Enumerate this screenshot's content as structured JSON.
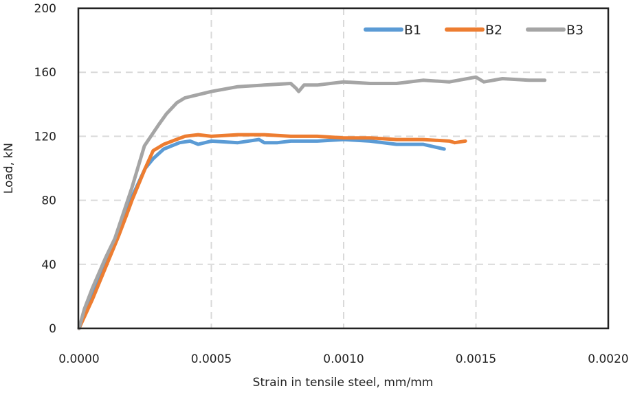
{
  "chart_data": {
    "type": "line",
    "title": "",
    "xlabel": "Strain in tensile steel, mm/mm",
    "ylabel": "Load, kN",
    "xlim": [
      0,
      0.002
    ],
    "ylim": [
      0,
      200
    ],
    "xticks": [
      "0.0000",
      "0.0005",
      "0.0010",
      "0.0015",
      "0.0020"
    ],
    "xtick_values": [
      0,
      0.0005,
      0.001,
      0.0015,
      0.002
    ],
    "yticks": [
      "0",
      "40",
      "80",
      "120",
      "160",
      "200"
    ],
    "ytick_values": [
      0,
      40,
      80,
      120,
      160,
      200
    ],
    "grid": true,
    "legend_position": "top-right",
    "series": [
      {
        "name": "B1",
        "color": "#5b9bd5",
        "points": [
          [
            0,
            0
          ],
          [
            5e-05,
            20
          ],
          [
            0.0001,
            40
          ],
          [
            0.00015,
            60
          ],
          [
            0.0002,
            82
          ],
          [
            0.00025,
            100
          ],
          [
            0.00028,
            106
          ],
          [
            0.00032,
            112
          ],
          [
            0.00038,
            116
          ],
          [
            0.00042,
            117
          ],
          [
            0.00045,
            115
          ],
          [
            0.0005,
            117
          ],
          [
            0.0006,
            116
          ],
          [
            0.00068,
            118
          ],
          [
            0.0007,
            116
          ],
          [
            0.00075,
            116
          ],
          [
            0.0008,
            117
          ],
          [
            0.0009,
            117
          ],
          [
            0.001,
            118
          ],
          [
            0.0011,
            117
          ],
          [
            0.0012,
            115
          ],
          [
            0.0013,
            115
          ],
          [
            0.00138,
            112
          ]
        ]
      },
      {
        "name": "B2",
        "color": "#ed7d31",
        "points": [
          [
            0,
            0
          ],
          [
            5e-05,
            18
          ],
          [
            0.0001,
            38
          ],
          [
            0.00015,
            58
          ],
          [
            0.00018,
            71
          ],
          [
            0.0002,
            80
          ],
          [
            0.00025,
            100
          ],
          [
            0.00028,
            111
          ],
          [
            0.00032,
            115
          ],
          [
            0.0004,
            120
          ],
          [
            0.00045,
            121
          ],
          [
            0.0005,
            120
          ],
          [
            0.0006,
            121
          ],
          [
            0.0007,
            121
          ],
          [
            0.0008,
            120
          ],
          [
            0.0009,
            120
          ],
          [
            0.001,
            119
          ],
          [
            0.0011,
            119
          ],
          [
            0.0012,
            118
          ],
          [
            0.0013,
            118
          ],
          [
            0.0014,
            117
          ],
          [
            0.00142,
            116
          ],
          [
            0.00146,
            117
          ]
        ]
      },
      {
        "name": "B3",
        "color": "#a5a5a5",
        "points": [
          [
            0,
            0
          ],
          [
            2e-05,
            12
          ],
          [
            5e-05,
            25
          ],
          [
            0.0001,
            44
          ],
          [
            0.000135,
            56
          ],
          [
            0.0002,
            88
          ],
          [
            0.000247,
            114
          ],
          [
            0.0003,
            127
          ],
          [
            0.00033,
            134
          ],
          [
            0.00037,
            141
          ],
          [
            0.0004,
            144
          ],
          [
            0.00045,
            146
          ],
          [
            0.0005,
            148
          ],
          [
            0.0006,
            151
          ],
          [
            0.0007,
            152
          ],
          [
            0.0008,
            153
          ],
          [
            0.00082,
            150
          ],
          [
            0.00083,
            148
          ],
          [
            0.00085,
            152
          ],
          [
            0.0009,
            152
          ],
          [
            0.001,
            154
          ],
          [
            0.0011,
            153
          ],
          [
            0.0012,
            153
          ],
          [
            0.0013,
            155
          ],
          [
            0.0014,
            154
          ],
          [
            0.0015,
            157
          ],
          [
            0.00153,
            154
          ],
          [
            0.0016,
            156
          ],
          [
            0.0017,
            155
          ],
          [
            0.00176,
            155
          ]
        ]
      }
    ]
  }
}
